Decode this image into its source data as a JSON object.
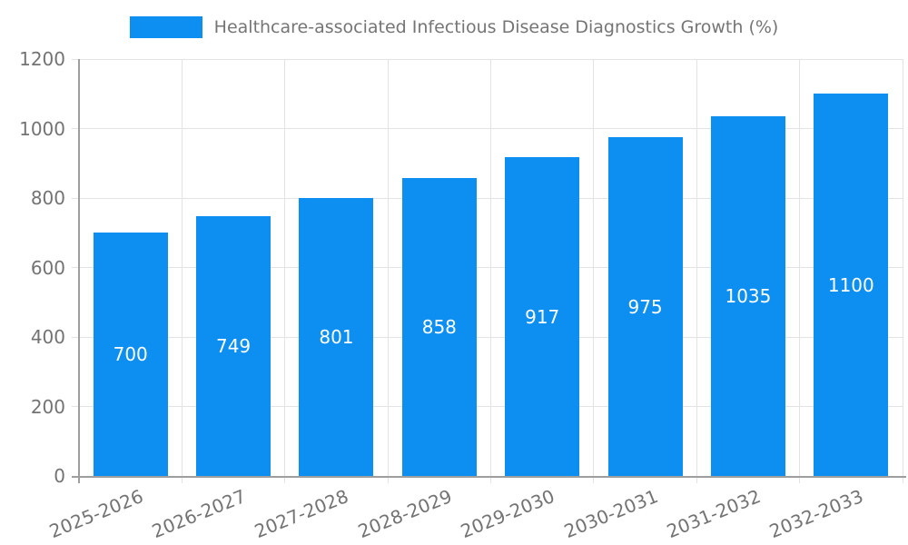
{
  "chart_data": {
    "type": "bar",
    "title": "Healthcare-associated Infectious Disease Diagnostics Growth (%)",
    "categories": [
      "2025-2026",
      "2026-2027",
      "2027-2028",
      "2028-2029",
      "2029-2030",
      "2030-2031",
      "2031-2032",
      "2032-2033"
    ],
    "values": [
      700,
      749,
      801,
      858,
      917,
      975,
      1035,
      1100
    ],
    "xlabel": "",
    "ylabel": "",
    "ylim": [
      0,
      1200
    ],
    "yticks": [
      0,
      200,
      400,
      600,
      800,
      1000,
      1200
    ],
    "grid": true,
    "legend_position": "top-center",
    "bar_color": "#0d8ff2",
    "bar_label_color": "#ffffff",
    "grid_color": "#e3e3e3",
    "axis_color": "#9e9e9e",
    "tick_text_color": "#737373",
    "legend_text_color": "#757575"
  }
}
